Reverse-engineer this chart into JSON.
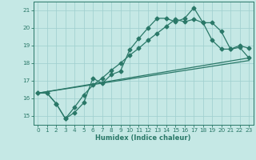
{
  "xlabel": "Humidex (Indice chaleur)",
  "xlim": [
    -0.5,
    23.5
  ],
  "ylim": [
    14.5,
    21.5
  ],
  "xticks": [
    0,
    1,
    2,
    3,
    4,
    5,
    6,
    7,
    8,
    9,
    10,
    11,
    12,
    13,
    14,
    15,
    16,
    17,
    18,
    19,
    20,
    21,
    22,
    23
  ],
  "yticks": [
    15,
    16,
    17,
    18,
    19,
    20,
    21
  ],
  "bg_color": "#c5e8e5",
  "line_color": "#2a7868",
  "grid_color": "#9ecece",
  "line1_x": [
    0,
    1,
    2,
    3,
    4,
    5,
    6,
    7,
    8,
    9,
    10,
    11,
    12,
    13,
    14,
    15,
    16,
    17,
    18,
    19,
    20,
    21,
    22,
    23
  ],
  "line1_y": [
    16.3,
    16.3,
    15.7,
    14.85,
    15.2,
    15.75,
    17.15,
    16.85,
    17.35,
    17.55,
    18.75,
    19.4,
    20.0,
    20.55,
    20.55,
    20.35,
    20.55,
    21.15,
    20.3,
    20.3,
    19.8,
    18.8,
    19.0,
    18.85
  ],
  "line2_x": [
    0,
    1,
    2,
    3,
    4,
    5,
    6,
    7,
    8,
    9,
    10,
    11,
    12,
    13,
    14,
    15,
    16,
    17,
    18,
    19,
    20,
    21,
    22,
    23
  ],
  "line2_y": [
    16.3,
    16.3,
    15.7,
    14.85,
    15.5,
    16.2,
    16.75,
    17.15,
    17.6,
    18.0,
    18.45,
    18.85,
    19.3,
    19.7,
    20.1,
    20.5,
    20.35,
    20.5,
    20.3,
    19.3,
    18.8,
    18.8,
    18.9,
    18.3
  ],
  "line3_x": [
    0,
    23
  ],
  "line3_y": [
    16.3,
    18.3
  ],
  "line4_x": [
    0,
    23
  ],
  "line4_y": [
    16.3,
    18.15
  ],
  "marker_size": 2.5,
  "linewidth": 0.9
}
